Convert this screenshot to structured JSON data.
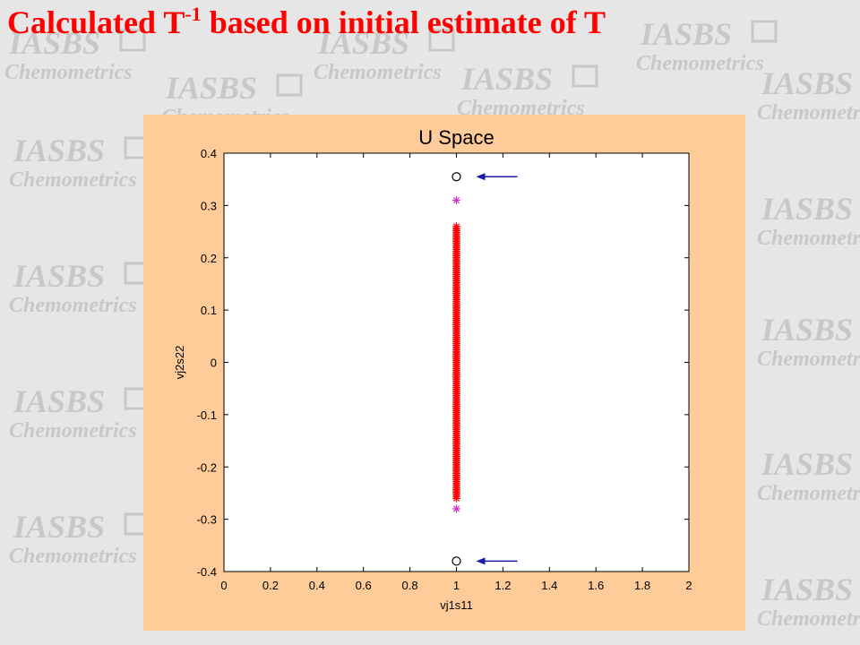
{
  "slide": {
    "title_main": "Calculated T",
    "title_sup": "-1",
    "title_rest": " based on initial estimate of T"
  },
  "watermark": {
    "logo_text": "IASBS",
    "sub_text": "Chemometrics"
  },
  "chart_data": {
    "type": "scatter",
    "title": "U Space",
    "xlabel": "vj1s11",
    "ylabel": "vj2s22",
    "xlim": [
      0,
      2
    ],
    "ylim": [
      -0.4,
      0.4
    ],
    "xticks": [
      0,
      0.2,
      0.4,
      0.6,
      0.8,
      1,
      1.2,
      1.4,
      1.6,
      1.8,
      2
    ],
    "xtick_labels": [
      "0",
      "0.2",
      "0.4",
      "0.6",
      "0.8",
      "1",
      "1.2",
      "1.4",
      "1.6",
      "1.8",
      "2"
    ],
    "yticks": [
      -0.4,
      -0.3,
      -0.2,
      -0.1,
      0,
      0.1,
      0.2,
      0.3,
      0.4
    ],
    "ytick_labels": [
      "-0.4",
      "-0.3",
      "-0.2",
      "-0.1",
      "0",
      "0.1",
      "0.2",
      "0.3",
      "0.4"
    ],
    "grid": false,
    "series": [
      {
        "marker": "asterisk",
        "color": "#ff0000",
        "x_value": 1,
        "y_range": [
          -0.26,
          0.26
        ],
        "y_step": 0.004
      },
      {
        "marker": "asterisk",
        "color": "#cc33cc",
        "points": [
          [
            1,
            0.31
          ],
          [
            1,
            -0.28
          ]
        ]
      },
      {
        "marker": "circle",
        "color": "#000000",
        "points": [
          [
            1,
            0.355
          ],
          [
            1,
            -0.38
          ]
        ]
      }
    ],
    "annotations": [
      {
        "type": "arrow",
        "color": "#1a1aaa",
        "points_to": [
          1,
          0.355
        ]
      },
      {
        "type": "arrow",
        "color": "#1a1aaa",
        "points_to": [
          1,
          -0.38
        ]
      }
    ]
  }
}
